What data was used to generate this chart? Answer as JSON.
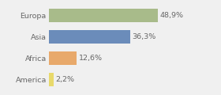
{
  "categories": [
    "Europa",
    "Asia",
    "Africa",
    "America"
  ],
  "values": [
    48.9,
    36.3,
    12.6,
    2.2
  ],
  "labels": [
    "48,9%",
    "36,3%",
    "12,6%",
    "2,2%"
  ],
  "bar_colors": [
    "#a8bb8a",
    "#6b8cba",
    "#e8a96b",
    "#e8d96b"
  ],
  "background_color": "#f0f0f0",
  "xlim": [
    0,
    72
  ],
  "bar_height": 0.62,
  "label_fontsize": 6.8,
  "tick_fontsize": 6.8,
  "figsize": [
    2.8,
    1.2
  ],
  "dpi": 100
}
